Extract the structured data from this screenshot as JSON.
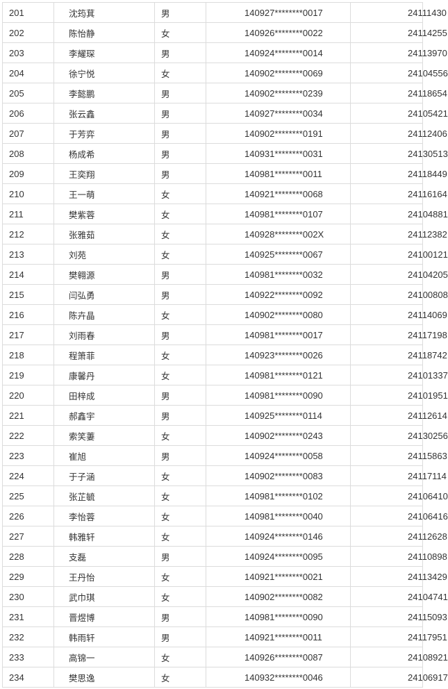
{
  "rows": [
    [
      "201",
      "沈筠萁",
      "男",
      "140927********0017",
      "24111430"
    ],
    [
      "202",
      "陈怡静",
      "女",
      "140926********0022",
      "24114255"
    ],
    [
      "203",
      "李耀琛",
      "男",
      "140924********0014",
      "24113970"
    ],
    [
      "204",
      "徐宁悦",
      "女",
      "140902********0069",
      "24104556"
    ],
    [
      "205",
      "李懿鹏",
      "男",
      "140902********0239",
      "24118654"
    ],
    [
      "206",
      "张云鑫",
      "男",
      "140927********0034",
      "24105421"
    ],
    [
      "207",
      "于芳弈",
      "男",
      "140902********0191",
      "24112406"
    ],
    [
      "208",
      "杨成希",
      "男",
      "140931********0031",
      "24130513"
    ],
    [
      "209",
      "王奕翔",
      "男",
      "140981********0011",
      "24118449"
    ],
    [
      "210",
      "王一萌",
      "女",
      "140921********0068",
      "24116164"
    ],
    [
      "211",
      "樊紫蓉",
      "女",
      "140981********0107",
      "24104881"
    ],
    [
      "212",
      "张雅茹",
      "女",
      "140928********002X",
      "24112382"
    ],
    [
      "213",
      "刘苑",
      "女",
      "140925********0067",
      "24100121"
    ],
    [
      "214",
      "樊翱源",
      "男",
      "140981********0032",
      "24104205"
    ],
    [
      "215",
      "闫弘勇",
      "男",
      "140922********0092",
      "24100808"
    ],
    [
      "216",
      "陈卉晶",
      "女",
      "140902********0080",
      "24114069"
    ],
    [
      "217",
      "刘雨春",
      "男",
      "140981********0017",
      "24117198"
    ],
    [
      "218",
      "程箫菲",
      "女",
      "140923********0026",
      "24118742"
    ],
    [
      "219",
      "康馨丹",
      "女",
      "140981********0121",
      "24101337"
    ],
    [
      "220",
      "田梓成",
      "男",
      "140981********0090",
      "24101951"
    ],
    [
      "221",
      "郝鑫宇",
      "男",
      "140925********0114",
      "24112614"
    ],
    [
      "222",
      "索笑萋",
      "女",
      "140902********0243",
      "24130256"
    ],
    [
      "223",
      "崔旭",
      "男",
      "140924********0058",
      "24115863"
    ],
    [
      "224",
      "于子涵",
      "女",
      "140902********0083",
      "24117114"
    ],
    [
      "225",
      "张芷毓",
      "女",
      "140981********0102",
      "24106410"
    ],
    [
      "226",
      "李怡蓉",
      "女",
      "140981********0040",
      "24106416"
    ],
    [
      "227",
      "韩雅轩",
      "女",
      "140924********0146",
      "24112628"
    ],
    [
      "228",
      "支磊",
      "男",
      "140924********0095",
      "24110898"
    ],
    [
      "229",
      "王丹怡",
      "女",
      "140921********0021",
      "24113429"
    ],
    [
      "230",
      "武巾琪",
      "女",
      "140902********0082",
      "24104741"
    ],
    [
      "231",
      "晋煜博",
      "男",
      "140981********0090",
      "24115093"
    ],
    [
      "232",
      "韩雨轩",
      "男",
      "140921********0011",
      "24117951"
    ],
    [
      "233",
      "高锦一",
      "女",
      "140926********0087",
      "24108921"
    ],
    [
      "234",
      "樊思逸",
      "女",
      "140932********0046",
      "24106917"
    ]
  ]
}
